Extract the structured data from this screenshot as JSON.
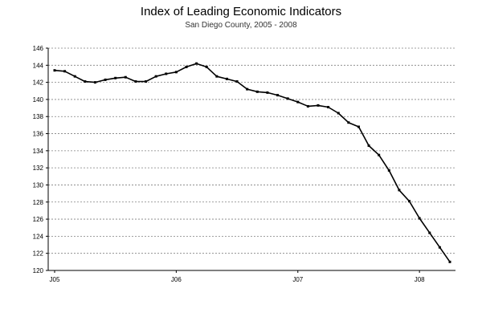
{
  "chart_data": {
    "type": "line",
    "title": "Index of Leading Economic Indicators",
    "subtitle": "San Diego County, 2005 - 2008",
    "xlabel": "",
    "ylabel": "",
    "ylim": [
      120,
      146
    ],
    "yticks": [
      120,
      122,
      124,
      126,
      128,
      130,
      132,
      134,
      136,
      138,
      140,
      142,
      144,
      146
    ],
    "ytick_labels": [
      "120",
      "122",
      "124",
      "126",
      "128",
      "130",
      "132",
      "134",
      "136",
      "138",
      "140",
      "142",
      "144",
      "146"
    ],
    "x_label_positions": [
      0,
      12,
      24,
      36
    ],
    "xtick_labels": [
      "J05",
      "J06",
      "J07",
      "J08"
    ],
    "grid": true,
    "colors": {
      "line": "#000000",
      "grid": "#808080",
      "axis": "#000000"
    },
    "series": [
      {
        "values": [
          143.4,
          143.3,
          142.7,
          142.1,
          142.0,
          142.3,
          142.5,
          142.6,
          142.1,
          142.1,
          142.7,
          143.0,
          143.2,
          143.8,
          144.2,
          143.8,
          142.7,
          142.4,
          142.1,
          141.2,
          140.9,
          140.8,
          140.5,
          140.1,
          139.7,
          139.2,
          139.3,
          139.1,
          138.4,
          137.3,
          136.8,
          134.6,
          133.5,
          131.7,
          129.4,
          128.1,
          126.1,
          124.4,
          122.7,
          121.0
        ]
      }
    ]
  }
}
